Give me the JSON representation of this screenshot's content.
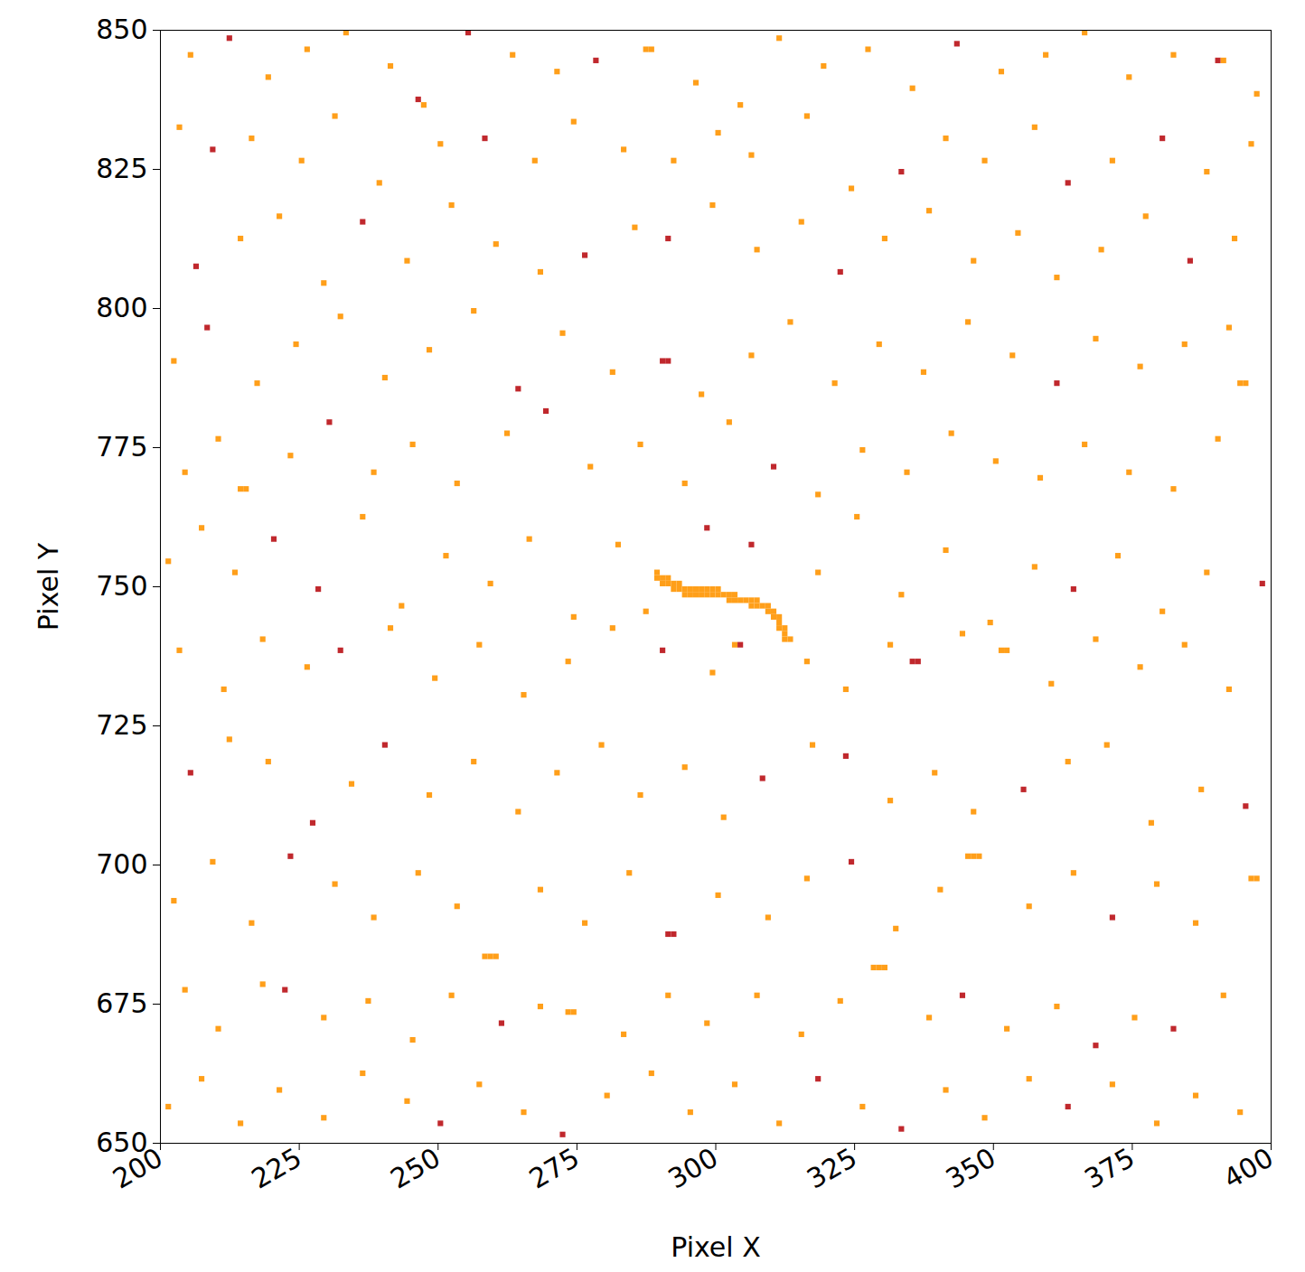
{
  "chart_data": {
    "type": "heatmap",
    "x_label": "Pixel X",
    "y_label": "Pixel Y",
    "xlim": [
      200,
      400
    ],
    "xticks": [
      200,
      225,
      250,
      275,
      300,
      325,
      350,
      375,
      400
    ],
    "ylim": [
      650,
      850
    ],
    "yticks": [
      650,
      675,
      700,
      725,
      750,
      775,
      800,
      825,
      850
    ],
    "levels": [
      1,
      2
    ],
    "colors": [
      "#ff9f1a",
      "#c0282d"
    ],
    "cells": [
      [
        289,
        751,
        1
      ],
      [
        289,
        752,
        1
      ],
      [
        290,
        751,
        1
      ],
      [
        290,
        750,
        1
      ],
      [
        291,
        750,
        1
      ],
      [
        291,
        751,
        1
      ],
      [
        292,
        750,
        1
      ],
      [
        292,
        749,
        1
      ],
      [
        293,
        749,
        1
      ],
      [
        293,
        750,
        1
      ],
      [
        294,
        749,
        1
      ],
      [
        294,
        748,
        1
      ],
      [
        295,
        749,
        1
      ],
      [
        295,
        748,
        1
      ],
      [
        296,
        749,
        1
      ],
      [
        296,
        748,
        1
      ],
      [
        297,
        748,
        1
      ],
      [
        297,
        749,
        1
      ],
      [
        298,
        748,
        1
      ],
      [
        298,
        749,
        1
      ],
      [
        299,
        748,
        1
      ],
      [
        299,
        749,
        1
      ],
      [
        300,
        748,
        1
      ],
      [
        300,
        749,
        1
      ],
      [
        301,
        748,
        1
      ],
      [
        302,
        748,
        1
      ],
      [
        302,
        747,
        1
      ],
      [
        303,
        747,
        1
      ],
      [
        303,
        748,
        1
      ],
      [
        304,
        747,
        1
      ],
      [
        305,
        747,
        1
      ],
      [
        306,
        747,
        1
      ],
      [
        306,
        746,
        1
      ],
      [
        307,
        747,
        1
      ],
      [
        307,
        746,
        1
      ],
      [
        308,
        746,
        1
      ],
      [
        309,
        746,
        1
      ],
      [
        309,
        745,
        1
      ],
      [
        310,
        745,
        1
      ],
      [
        310,
        744,
        1
      ],
      [
        311,
        744,
        1
      ],
      [
        311,
        743,
        1
      ],
      [
        311,
        742,
        1
      ],
      [
        312,
        742,
        1
      ],
      [
        312,
        741,
        1
      ],
      [
        312,
        740,
        1
      ],
      [
        313,
        740,
        1
      ],
      [
        205,
        845,
        1
      ],
      [
        212,
        848,
        2
      ],
      [
        219,
        841,
        1
      ],
      [
        226,
        846,
        1
      ],
      [
        233,
        849,
        1
      ],
      [
        241,
        843,
        1
      ],
      [
        247,
        836,
        1
      ],
      [
        246,
        837,
        2
      ],
      [
        255,
        849,
        2
      ],
      [
        263,
        845,
        1
      ],
      [
        271,
        842,
        1
      ],
      [
        278,
        844,
        2
      ],
      [
        287,
        846,
        1
      ],
      [
        288,
        846,
        1
      ],
      [
        296,
        840,
        1
      ],
      [
        304,
        836,
        1
      ],
      [
        311,
        848,
        1
      ],
      [
        319,
        843,
        1
      ],
      [
        327,
        846,
        1
      ],
      [
        335,
        839,
        1
      ],
      [
        343,
        847,
        2
      ],
      [
        351,
        842,
        1
      ],
      [
        359,
        845,
        1
      ],
      [
        366,
        849,
        1
      ],
      [
        374,
        841,
        1
      ],
      [
        382,
        845,
        1
      ],
      [
        390,
        844,
        2
      ],
      [
        391,
        844,
        1
      ],
      [
        397,
        838,
        1
      ],
      [
        203,
        832,
        1
      ],
      [
        209,
        828,
        2
      ],
      [
        216,
        830,
        1
      ],
      [
        225,
        826,
        1
      ],
      [
        231,
        834,
        1
      ],
      [
        239,
        822,
        1
      ],
      [
        250,
        829,
        1
      ],
      [
        258,
        830,
        2
      ],
      [
        267,
        826,
        1
      ],
      [
        274,
        833,
        1
      ],
      [
        283,
        828,
        1
      ],
      [
        292,
        826,
        1
      ],
      [
        300,
        831,
        1
      ],
      [
        306,
        827,
        1
      ],
      [
        316,
        834,
        1
      ],
      [
        324,
        821,
        1
      ],
      [
        333,
        824,
        2
      ],
      [
        341,
        830,
        1
      ],
      [
        348,
        826,
        1
      ],
      [
        357,
        832,
        1
      ],
      [
        363,
        822,
        2
      ],
      [
        371,
        826,
        1
      ],
      [
        380,
        830,
        2
      ],
      [
        388,
        824,
        1
      ],
      [
        396,
        829,
        1
      ],
      [
        206,
        807,
        2
      ],
      [
        214,
        812,
        1
      ],
      [
        221,
        816,
        1
      ],
      [
        229,
        804,
        1
      ],
      [
        236,
        815,
        2
      ],
      [
        244,
        808,
        1
      ],
      [
        252,
        818,
        1
      ],
      [
        260,
        811,
        1
      ],
      [
        268,
        806,
        1
      ],
      [
        276,
        809,
        2
      ],
      [
        285,
        814,
        1
      ],
      [
        291,
        812,
        2
      ],
      [
        299,
        818,
        1
      ],
      [
        307,
        810,
        1
      ],
      [
        315,
        815,
        1
      ],
      [
        322,
        806,
        2
      ],
      [
        330,
        812,
        1
      ],
      [
        338,
        817,
        1
      ],
      [
        346,
        808,
        1
      ],
      [
        354,
        813,
        1
      ],
      [
        361,
        805,
        1
      ],
      [
        369,
        810,
        1
      ],
      [
        377,
        816,
        1
      ],
      [
        385,
        808,
        2
      ],
      [
        393,
        812,
        1
      ],
      [
        202,
        790,
        1
      ],
      [
        208,
        796,
        2
      ],
      [
        217,
        786,
        1
      ],
      [
        224,
        793,
        1
      ],
      [
        232,
        798,
        1
      ],
      [
        240,
        787,
        1
      ],
      [
        248,
        792,
        1
      ],
      [
        256,
        799,
        1
      ],
      [
        264,
        785,
        2
      ],
      [
        272,
        795,
        1
      ],
      [
        281,
        788,
        1
      ],
      [
        290,
        790,
        2
      ],
      [
        291,
        790,
        2
      ],
      [
        297,
        784,
        1
      ],
      [
        306,
        791,
        1
      ],
      [
        313,
        797,
        1
      ],
      [
        321,
        786,
        1
      ],
      [
        329,
        793,
        1
      ],
      [
        337,
        788,
        1
      ],
      [
        345,
        797,
        1
      ],
      [
        353,
        791,
        1
      ],
      [
        361,
        786,
        2
      ],
      [
        368,
        794,
        1
      ],
      [
        376,
        789,
        1
      ],
      [
        384,
        793,
        1
      ],
      [
        392,
        796,
        1
      ],
      [
        394,
        786,
        1
      ],
      [
        395,
        786,
        1
      ],
      [
        204,
        770,
        1
      ],
      [
        210,
        776,
        1
      ],
      [
        214,
        767,
        1
      ],
      [
        215,
        767,
        1
      ],
      [
        223,
        773,
        1
      ],
      [
        230,
        779,
        2
      ],
      [
        238,
        770,
        1
      ],
      [
        245,
        775,
        1
      ],
      [
        253,
        768,
        1
      ],
      [
        262,
        777,
        1
      ],
      [
        269,
        781,
        2
      ],
      [
        277,
        771,
        1
      ],
      [
        286,
        775,
        1
      ],
      [
        294,
        768,
        1
      ],
      [
        302,
        779,
        1
      ],
      [
        310,
        771,
        2
      ],
      [
        318,
        766,
        1
      ],
      [
        326,
        774,
        1
      ],
      [
        334,
        770,
        1
      ],
      [
        342,
        777,
        1
      ],
      [
        350,
        772,
        1
      ],
      [
        358,
        769,
        1
      ],
      [
        366,
        775,
        1
      ],
      [
        374,
        770,
        1
      ],
      [
        382,
        767,
        1
      ],
      [
        390,
        776,
        1
      ],
      [
        201,
        754,
        1
      ],
      [
        207,
        760,
        1
      ],
      [
        213,
        752,
        1
      ],
      [
        220,
        758,
        2
      ],
      [
        228,
        749,
        2
      ],
      [
        236,
        762,
        1
      ],
      [
        243,
        746,
        1
      ],
      [
        251,
        755,
        1
      ],
      [
        259,
        750,
        1
      ],
      [
        266,
        758,
        1
      ],
      [
        274,
        744,
        1
      ],
      [
        282,
        757,
        1
      ],
      [
        287,
        745,
        1
      ],
      [
        298,
        760,
        2
      ],
      [
        306,
        757,
        2
      ],
      [
        318,
        752,
        1
      ],
      [
        325,
        762,
        1
      ],
      [
        333,
        748,
        1
      ],
      [
        341,
        756,
        1
      ],
      [
        349,
        743,
        1
      ],
      [
        357,
        753,
        1
      ],
      [
        364,
        749,
        2
      ],
      [
        372,
        755,
        1
      ],
      [
        380,
        745,
        1
      ],
      [
        388,
        752,
        1
      ],
      [
        398,
        750,
        2
      ],
      [
        203,
        738,
        1
      ],
      [
        211,
        731,
        1
      ],
      [
        218,
        740,
        1
      ],
      [
        226,
        735,
        1
      ],
      [
        232,
        738,
        2
      ],
      [
        241,
        742,
        1
      ],
      [
        249,
        733,
        1
      ],
      [
        257,
        739,
        1
      ],
      [
        265,
        730,
        1
      ],
      [
        273,
        736,
        1
      ],
      [
        281,
        742,
        1
      ],
      [
        290,
        738,
        2
      ],
      [
        299,
        734,
        1
      ],
      [
        303,
        739,
        1
      ],
      [
        304,
        739,
        2
      ],
      [
        316,
        736,
        1
      ],
      [
        323,
        731,
        1
      ],
      [
        331,
        739,
        1
      ],
      [
        335,
        736,
        2
      ],
      [
        336,
        736,
        2
      ],
      [
        344,
        741,
        1
      ],
      [
        351,
        738,
        1
      ],
      [
        352,
        738,
        1
      ],
      [
        360,
        732,
        1
      ],
      [
        368,
        740,
        1
      ],
      [
        376,
        735,
        1
      ],
      [
        384,
        739,
        1
      ],
      [
        392,
        731,
        1
      ],
      [
        205,
        716,
        2
      ],
      [
        212,
        722,
        1
      ],
      [
        219,
        718,
        1
      ],
      [
        227,
        707,
        2
      ],
      [
        234,
        714,
        1
      ],
      [
        240,
        721,
        2
      ],
      [
        248,
        712,
        1
      ],
      [
        256,
        718,
        1
      ],
      [
        264,
        709,
        1
      ],
      [
        271,
        716,
        1
      ],
      [
        279,
        721,
        1
      ],
      [
        286,
        712,
        1
      ],
      [
        294,
        717,
        1
      ],
      [
        301,
        708,
        1
      ],
      [
        308,
        715,
        2
      ],
      [
        317,
        721,
        1
      ],
      [
        323,
        719,
        2
      ],
      [
        331,
        711,
        1
      ],
      [
        339,
        716,
        1
      ],
      [
        346,
        709,
        1
      ],
      [
        355,
        713,
        2
      ],
      [
        363,
        718,
        1
      ],
      [
        370,
        721,
        1
      ],
      [
        378,
        707,
        1
      ],
      [
        387,
        713,
        1
      ],
      [
        395,
        710,
        2
      ],
      [
        202,
        693,
        1
      ],
      [
        209,
        700,
        1
      ],
      [
        216,
        689,
        1
      ],
      [
        223,
        701,
        2
      ],
      [
        231,
        696,
        1
      ],
      [
        238,
        690,
        1
      ],
      [
        246,
        698,
        1
      ],
      [
        253,
        692,
        1
      ],
      [
        258,
        683,
        1
      ],
      [
        259,
        683,
        1
      ],
      [
        260,
        683,
        1
      ],
      [
        268,
        695,
        1
      ],
      [
        276,
        689,
        1
      ],
      [
        284,
        698,
        1
      ],
      [
        291,
        687,
        2
      ],
      [
        292,
        687,
        2
      ],
      [
        300,
        694,
        1
      ],
      [
        309,
        690,
        1
      ],
      [
        316,
        697,
        1
      ],
      [
        324,
        700,
        2
      ],
      [
        332,
        688,
        1
      ],
      [
        340,
        695,
        1
      ],
      [
        345,
        701,
        1
      ],
      [
        346,
        701,
        1
      ],
      [
        347,
        701,
        1
      ],
      [
        356,
        692,
        1
      ],
      [
        364,
        698,
        1
      ],
      [
        371,
        690,
        2
      ],
      [
        379,
        696,
        1
      ],
      [
        386,
        689,
        1
      ],
      [
        396,
        697,
        1
      ],
      [
        397,
        697,
        1
      ],
      [
        204,
        677,
        1
      ],
      [
        210,
        670,
        1
      ],
      [
        218,
        678,
        1
      ],
      [
        222,
        677,
        2
      ],
      [
        229,
        672,
        1
      ],
      [
        237,
        675,
        1
      ],
      [
        245,
        668,
        1
      ],
      [
        252,
        676,
        1
      ],
      [
        261,
        671,
        2
      ],
      [
        268,
        674,
        1
      ],
      [
        273,
        673,
        1
      ],
      [
        274,
        673,
        1
      ],
      [
        283,
        669,
        1
      ],
      [
        291,
        676,
        1
      ],
      [
        298,
        671,
        1
      ],
      [
        307,
        676,
        1
      ],
      [
        315,
        669,
        1
      ],
      [
        322,
        675,
        1
      ],
      [
        328,
        681,
        1
      ],
      [
        329,
        681,
        1
      ],
      [
        330,
        681,
        1
      ],
      [
        338,
        672,
        1
      ],
      [
        344,
        676,
        2
      ],
      [
        352,
        670,
        1
      ],
      [
        361,
        674,
        1
      ],
      [
        368,
        667,
        2
      ],
      [
        375,
        672,
        1
      ],
      [
        382,
        670,
        2
      ],
      [
        391,
        676,
        1
      ],
      [
        201,
        656,
        1
      ],
      [
        207,
        661,
        1
      ],
      [
        214,
        653,
        1
      ],
      [
        221,
        659,
        1
      ],
      [
        229,
        654,
        1
      ],
      [
        236,
        662,
        1
      ],
      [
        244,
        657,
        1
      ],
      [
        250,
        653,
        2
      ],
      [
        257,
        660,
        1
      ],
      [
        265,
        655,
        1
      ],
      [
        272,
        651,
        2
      ],
      [
        280,
        658,
        1
      ],
      [
        288,
        662,
        1
      ],
      [
        295,
        655,
        1
      ],
      [
        303,
        660,
        1
      ],
      [
        311,
        653,
        1
      ],
      [
        318,
        661,
        2
      ],
      [
        326,
        656,
        1
      ],
      [
        333,
        652,
        2
      ],
      [
        341,
        659,
        1
      ],
      [
        348,
        654,
        1
      ],
      [
        356,
        661,
        1
      ],
      [
        363,
        656,
        2
      ],
      [
        371,
        660,
        1
      ],
      [
        379,
        653,
        1
      ],
      [
        386,
        658,
        1
      ],
      [
        394,
        655,
        1
      ]
    ]
  }
}
